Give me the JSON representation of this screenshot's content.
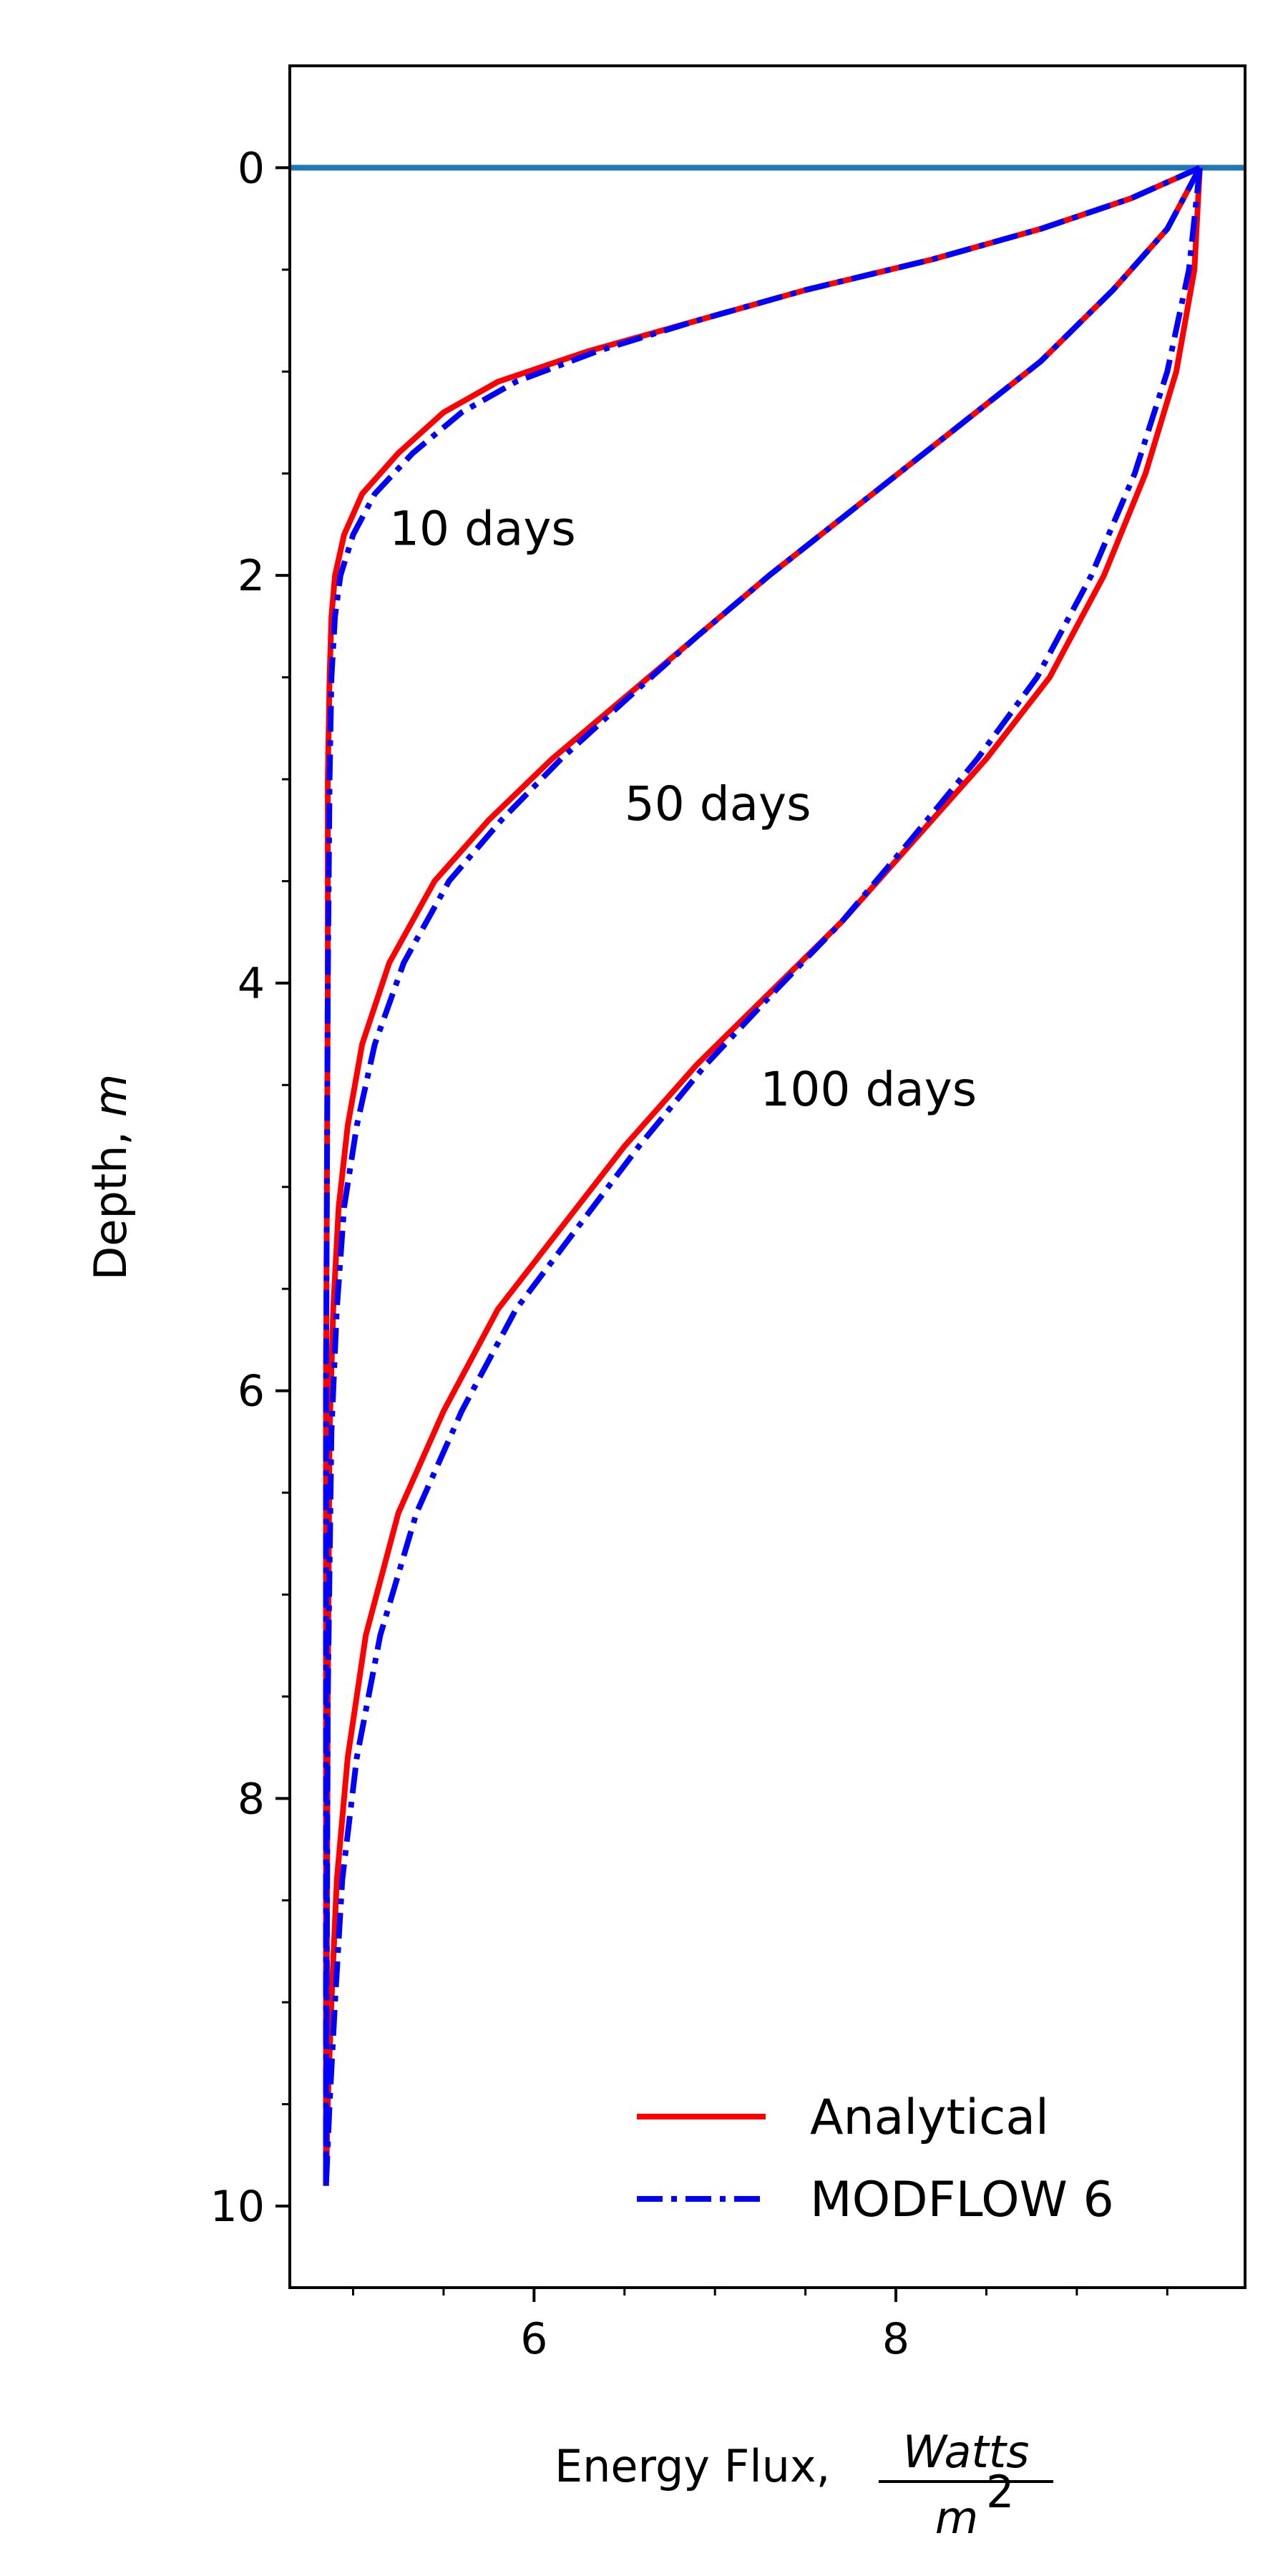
{
  "chart_data": {
    "type": "line",
    "title": "",
    "xlabel_prefix": "Energy Flux, ",
    "xlabel_frac_num": "Watts",
    "xlabel_frac_den": "m",
    "xlabel_frac_den_sup": "2",
    "ylabel_prefix": "Depth, ",
    "ylabel_unit": "m",
    "xlim": [
      4.65,
      9.93
    ],
    "ylim": [
      10.4,
      -0.5
    ],
    "y_inverted": true,
    "xticks": [
      6,
      8
    ],
    "xtick_labels": [
      "6",
      "8"
    ],
    "x_minor_ticks": [
      5.0,
      5.5,
      6.5,
      7.0,
      7.5,
      8.5,
      9.0,
      9.5
    ],
    "yticks": [
      0,
      2,
      4,
      6,
      8,
      10
    ],
    "ytick_labels": [
      "0",
      "2",
      "4",
      "6",
      "8",
      "10"
    ],
    "y_minor_ticks": [
      0.5,
      1.0,
      1.5,
      2.5,
      3.0,
      3.5,
      4.5,
      5.0,
      5.5,
      6.5,
      7.0,
      7.5,
      8.5,
      9.0,
      9.5
    ],
    "grid": false,
    "legend_position": "lower-right",
    "reference_line": {
      "y": 0,
      "color": "#1f77b4"
    },
    "annotations": [
      {
        "text": "10 days",
        "x": 5.2,
        "y": 1.85
      },
      {
        "text": "50 days",
        "x": 6.5,
        "y": 3.2
      },
      {
        "text": "100 days",
        "x": 7.25,
        "y": 4.6
      }
    ],
    "series": [
      {
        "name": "Analytical",
        "color": "#ff0000",
        "style": "solid",
        "curves": [
          {
            "label": "10 days",
            "x": [
              9.68,
              9.3,
              8.8,
              8.2,
              7.5,
              6.9,
              6.3,
              5.8,
              5.5,
              5.25,
              5.05,
              4.95,
              4.9,
              4.88,
              4.87,
              4.86,
              4.86,
              4.85,
              4.85
            ],
            "y": [
              0,
              0.15,
              0.3,
              0.45,
              0.6,
              0.75,
              0.9,
              1.05,
              1.2,
              1.4,
              1.6,
              1.8,
              2.0,
              2.2,
              2.5,
              3.0,
              4.0,
              6.0,
              9.9
            ]
          },
          {
            "label": "50 days",
            "x": [
              9.68,
              9.5,
              9.2,
              8.8,
              8.3,
              7.8,
              7.3,
              6.9,
              6.5,
              6.1,
              5.75,
              5.45,
              5.2,
              5.05,
              4.97,
              4.92,
              4.89,
              4.87,
              4.86,
              4.85
            ],
            "y": [
              0,
              0.3,
              0.6,
              0.95,
              1.3,
              1.65,
              2.0,
              2.3,
              2.6,
              2.9,
              3.2,
              3.5,
              3.9,
              4.3,
              4.7,
              5.1,
              5.6,
              6.2,
              7.5,
              9.9
            ]
          },
          {
            "label": "100 days",
            "x": [
              9.68,
              9.65,
              9.55,
              9.38,
              9.15,
              8.85,
              8.5,
              8.1,
              7.7,
              7.3,
              6.9,
              6.5,
              6.15,
              5.8,
              5.5,
              5.25,
              5.07,
              4.97,
              4.91,
              4.88,
              4.86,
              4.85
            ],
            "y": [
              0,
              0.5,
              1.0,
              1.5,
              2.0,
              2.5,
              2.9,
              3.3,
              3.7,
              4.05,
              4.4,
              4.8,
              5.2,
              5.6,
              6.1,
              6.6,
              7.2,
              7.8,
              8.4,
              9.0,
              9.5,
              9.9
            ]
          }
        ]
      },
      {
        "name": "MODFLOW 6",
        "color": "#0000ff",
        "style": "dashdot",
        "curves": [
          {
            "label": "10 days",
            "x": [
              9.68,
              9.3,
              8.8,
              8.2,
              7.5,
              6.9,
              6.35,
              5.9,
              5.6,
              5.33,
              5.12,
              5.0,
              4.93,
              4.9,
              4.88,
              4.87,
              4.86,
              4.85,
              4.85
            ],
            "y": [
              0,
              0.15,
              0.3,
              0.45,
              0.6,
              0.75,
              0.9,
              1.05,
              1.2,
              1.4,
              1.6,
              1.8,
              2.0,
              2.2,
              2.5,
              3.0,
              4.0,
              6.0,
              9.9
            ]
          },
          {
            "label": "50 days",
            "x": [
              9.68,
              9.5,
              9.2,
              8.8,
              8.3,
              7.8,
              7.3,
              6.9,
              6.52,
              6.15,
              5.82,
              5.53,
              5.28,
              5.12,
              5.02,
              4.95,
              4.91,
              4.88,
              4.86,
              4.85
            ],
            "y": [
              0,
              0.3,
              0.6,
              0.95,
              1.3,
              1.65,
              2.0,
              2.3,
              2.6,
              2.9,
              3.2,
              3.5,
              3.9,
              4.3,
              4.7,
              5.1,
              5.6,
              6.2,
              7.5,
              9.9
            ]
          },
          {
            "label": "100 days",
            "x": [
              9.68,
              9.62,
              9.5,
              9.32,
              9.08,
              8.78,
              8.45,
              8.08,
              7.7,
              7.32,
              6.95,
              6.58,
              6.24,
              5.9,
              5.6,
              5.35,
              5.15,
              5.02,
              4.94,
              4.9,
              4.87,
              4.85
            ],
            "y": [
              0,
              0.5,
              1.0,
              1.5,
              2.0,
              2.5,
              2.9,
              3.3,
              3.7,
              4.05,
              4.4,
              4.8,
              5.2,
              5.6,
              6.1,
              6.6,
              7.2,
              7.8,
              8.4,
              9.0,
              9.5,
              9.9
            ]
          }
        ]
      }
    ]
  }
}
